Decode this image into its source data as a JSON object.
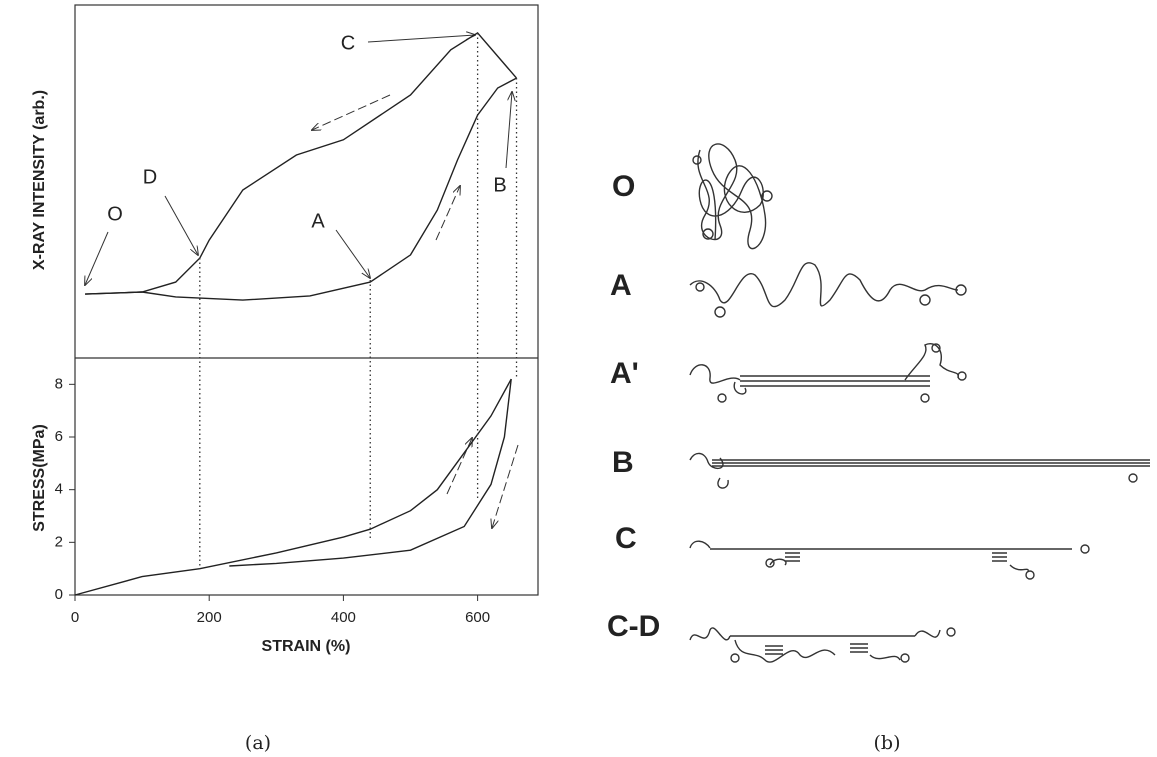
{
  "chart_data": [
    {
      "type": "line",
      "ylabel": "X-RAY INTENSITY (arb.)",
      "xlim": [
        0,
        690
      ],
      "ylim": [
        0,
        100
      ],
      "series": [
        {
          "color": "#222",
          "x": [
            15,
            100,
            150,
            250,
            350,
            440,
            500,
            540,
            570,
            600,
            630,
            658
          ],
          "values": [
            18.1,
            18.7,
            17.3,
            16.4,
            17.6,
            21.5,
            29.2,
            41.9,
            56.1,
            68.8,
            76.5,
            79.3
          ]
        },
        {
          "color": "#222",
          "x": [
            658,
            600,
            560,
            500,
            400,
            330,
            250,
            200,
            186,
            150,
            100,
            15
          ],
          "values": [
            79.3,
            92.1,
            87.3,
            74.5,
            61.8,
            57.5,
            47.6,
            33.4,
            28.3,
            21.5,
            18.7,
            18.1
          ]
        }
      ],
      "vlines": [
        186,
        440,
        600,
        658
      ],
      "annotations": [
        "O",
        "D",
        "A",
        "C",
        "B"
      ]
    },
    {
      "type": "line",
      "xlabel": "STRAIN (%)",
      "ylabel": "STRESS(MPa)",
      "xlim": [
        0,
        690
      ],
      "ylim": [
        0,
        9
      ],
      "xticks": [
        0,
        200,
        400,
        600
      ],
      "yticks": [
        0,
        2,
        4,
        6,
        8
      ],
      "series": [
        {
          "color": "#222",
          "x": [
            0,
            100,
            186,
            300,
            400,
            440,
            500,
            540,
            580,
            620,
            650
          ],
          "values": [
            0,
            0.7,
            1.0,
            1.6,
            2.2,
            2.5,
            3.2,
            4.0,
            5.4,
            6.8,
            8.2
          ]
        },
        {
          "color": "#222",
          "x": [
            650,
            640,
            620,
            580,
            500,
            400,
            300,
            230
          ],
          "values": [
            8.2,
            6.0,
            4.2,
            2.6,
            1.7,
            1.4,
            1.2,
            1.1
          ]
        }
      ]
    }
  ],
  "diagram": {
    "labels": [
      "O",
      "A",
      "A'",
      "B",
      "C",
      "C-D"
    ]
  },
  "captions": [
    "(a)",
    "(b)"
  ]
}
